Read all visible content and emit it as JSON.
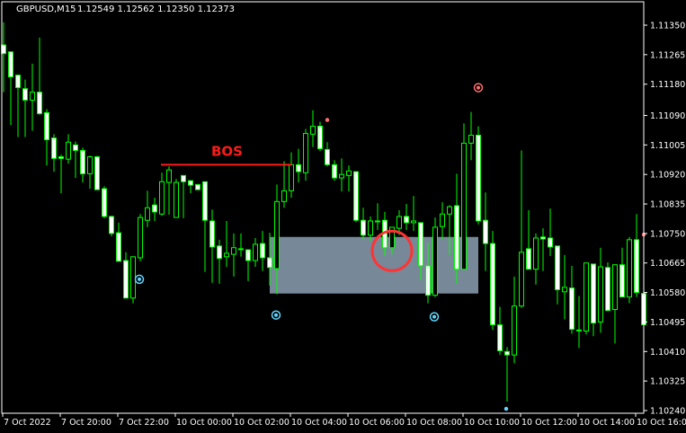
{
  "header": {
    "symbol": "GBPUSD,M15",
    "quote": "1.12549 1.12562 1.12350 1.12373"
  },
  "colors": {
    "background": "#000000",
    "candle_outline": "#00ff00",
    "bull_fill": "#000000",
    "bear_fill": "#ffffff",
    "bos": "#ff1a1a",
    "zone": "#778899",
    "marker_low": "#5fd7ff",
    "marker_high": "#ff7070",
    "highlight_circle": "#ff3333"
  },
  "price_axis": {
    "labels": [
      "1.11350",
      "1.11265",
      "1.11180",
      "1.11090",
      "1.11005",
      "1.10920",
      "1.10835",
      "1.10750",
      "1.10665",
      "1.10580",
      "1.10495",
      "1.10410",
      "1.10325",
      "1.10240"
    ]
  },
  "time_axis": {
    "labels": [
      "7 Oct 2022",
      "7 Oct 20:00",
      "7 Oct 22:00",
      "10 Oct 00:00",
      "10 Oct 02:00",
      "10 Oct 04:00",
      "10 Oct 06:00",
      "10 Oct 08:00",
      "10 Oct 10:00",
      "10 Oct 12:00",
      "10 Oct 14:00",
      "10 Oct 16:00"
    ]
  },
  "chart_data": {
    "type": "candlestick",
    "ohlc_order": [
      "open",
      "high",
      "low",
      "close"
    ],
    "candles": [
      [
        1.11293,
        1.11358,
        1.11157,
        1.11268
      ],
      [
        1.11273,
        1.11275,
        1.11062,
        1.11201
      ],
      [
        1.11206,
        1.11208,
        1.11028,
        1.1117
      ],
      [
        1.11167,
        1.11193,
        1.11028,
        1.11134
      ],
      [
        1.11134,
        1.11239,
        1.11046,
        1.11157
      ],
      [
        1.11157,
        1.11314,
        1.11092,
        1.11095
      ],
      [
        1.11098,
        1.11108,
        1.10946,
        1.1102
      ],
      [
        1.11025,
        1.11036,
        1.10928,
        1.10966
      ],
      [
        1.10971,
        1.10977,
        1.10866,
        1.10966
      ],
      [
        1.10964,
        1.11036,
        1.10951,
        1.11013
      ],
      [
        1.11005,
        1.11015,
        1.1091,
        1.10989
      ],
      [
        1.10989,
        1.10997,
        1.10897,
        1.10922
      ],
      [
        1.10922,
        1.10974,
        1.10879,
        1.10971
      ],
      [
        1.10971,
        1.10974,
        1.10876,
        1.10876
      ],
      [
        1.10879,
        1.10886,
        1.10794,
        1.10799
      ],
      [
        1.10799,
        1.10801,
        1.10742,
        1.1075
      ],
      [
        1.10752,
        1.10781,
        1.1067,
        1.1067
      ],
      [
        1.10672,
        1.10696,
        1.10564,
        1.10564
      ],
      [
        1.10564,
        1.10683,
        1.10549,
        1.10683
      ],
      [
        1.1068,
        1.10806,
        1.1067,
        1.10796
      ],
      [
        1.10788,
        1.10873,
        1.10768,
        1.10824
      ],
      [
        1.10832,
        1.10853,
        1.10786,
        1.10812
      ],
      [
        1.10806,
        1.10925,
        1.10801,
        1.10899
      ],
      [
        1.10897,
        1.10943,
        1.10804,
        1.10933
      ],
      [
        1.10796,
        1.10907,
        1.10796,
        1.10897
      ],
      [
        1.10917,
        1.10917,
        1.10794,
        1.10899
      ],
      [
        1.10902,
        1.10902,
        1.10866,
        1.10889
      ],
      [
        1.10891,
        1.10891,
        1.10876,
        1.10876
      ],
      [
        1.10899,
        1.10899,
        1.10639,
        1.10788
      ],
      [
        1.10786,
        1.10819,
        1.10608,
        1.10711
      ],
      [
        1.10714,
        1.10732,
        1.10605,
        1.10678
      ],
      [
        1.10683,
        1.10786,
        1.10654,
        1.10693
      ],
      [
        1.1069,
        1.1075,
        1.10626,
        1.10709
      ],
      [
        1.10706,
        1.1075,
        1.10683,
        1.10706
      ],
      [
        1.10703,
        1.10703,
        1.10613,
        1.10672
      ],
      [
        1.10672,
        1.10737,
        1.10654,
        1.10719
      ],
      [
        1.10721,
        1.10757,
        1.10642,
        1.1068
      ],
      [
        1.1068,
        1.10752,
        1.106,
        1.10652
      ],
      [
        1.10649,
        1.10891,
        1.10575,
        1.10842
      ],
      [
        1.10842,
        1.10958,
        1.10824,
        1.10873
      ],
      [
        1.10873,
        1.10984,
        1.10853,
        1.10948
      ],
      [
        1.10948,
        1.10994,
        1.10897,
        1.10928
      ],
      [
        1.10925,
        1.11051,
        1.10902,
        1.11038
      ],
      [
        1.11036,
        1.11105,
        1.10999,
        1.11059
      ],
      [
        1.11059,
        1.11072,
        1.10987,
        1.10994
      ],
      [
        1.10992,
        1.11013,
        1.10943,
        1.10948
      ],
      [
        1.10948,
        1.10961,
        1.10902,
        1.1091
      ],
      [
        1.1091,
        1.10966,
        1.10871,
        1.1092
      ],
      [
        1.10917,
        1.10946,
        1.10871,
        1.1093
      ],
      [
        1.10928,
        1.10928,
        1.10783,
        1.10788
      ],
      [
        1.10788,
        1.10824,
        1.10732,
        1.10745
      ],
      [
        1.10745,
        1.10799,
        1.10729,
        1.10786
      ],
      [
        1.10786,
        1.10837,
        1.1076,
        1.10786
      ],
      [
        1.10788,
        1.10812,
        1.10685,
        1.10709
      ],
      [
        1.10709,
        1.10768,
        1.1069,
        1.10768
      ],
      [
        1.10765,
        1.10817,
        1.10745,
        1.10799
      ],
      [
        1.10799,
        1.10835,
        1.1076,
        1.10781
      ],
      [
        1.10781,
        1.10858,
        1.10757,
        1.10786
      ],
      [
        1.10781,
        1.10781,
        1.10616,
        1.10657
      ],
      [
        1.10657,
        1.10724,
        1.10549,
        1.10572
      ],
      [
        1.10572,
        1.10796,
        1.10567,
        1.10768
      ],
      [
        1.1077,
        1.1084,
        1.10734,
        1.10806
      ],
      [
        1.10806,
        1.10832,
        1.10688,
        1.10827
      ],
      [
        1.1083,
        1.10922,
        1.10605,
        1.10647
      ],
      [
        1.10647,
        1.11067,
        1.10647,
        1.1101
      ],
      [
        1.1101,
        1.111,
        1.10961,
        1.11033
      ],
      [
        1.11033,
        1.11059,
        1.10776,
        1.10786
      ],
      [
        1.10788,
        1.10868,
        1.10642,
        1.10721
      ],
      [
        1.10721,
        1.10757,
        1.10472,
        1.10487
      ],
      [
        1.10487,
        1.10539,
        1.104,
        1.10412
      ],
      [
        1.1041,
        1.10423,
        1.10266,
        1.104
      ],
      [
        1.104,
        1.10626,
        1.10376,
        1.10541
      ],
      [
        1.10541,
        1.10989,
        1.10536,
        1.10696
      ],
      [
        1.10706,
        1.10817,
        1.10647,
        1.10647
      ],
      [
        1.10647,
        1.1075,
        1.10603,
        1.10737
      ],
      [
        1.1074,
        1.10765,
        1.10642,
        1.10734
      ],
      [
        1.10737,
        1.10822,
        1.10685,
        1.10711
      ],
      [
        1.10714,
        1.10714,
        1.10546,
        1.10588
      ],
      [
        1.10582,
        1.10688,
        1.10503,
        1.10595
      ],
      [
        1.10593,
        1.10657,
        1.10461,
        1.10474
      ],
      [
        1.10472,
        1.1057,
        1.1042,
        1.10472
      ],
      [
        1.10469,
        1.10665,
        1.10459,
        1.10665
      ],
      [
        1.10662,
        1.10662,
        1.10454,
        1.10492
      ],
      [
        1.10495,
        1.10709,
        1.10464,
        1.10654
      ],
      [
        1.10652,
        1.10667,
        1.10528,
        1.10528
      ],
      [
        1.10531,
        1.1066,
        1.10433,
        1.1066
      ],
      [
        1.1066,
        1.10709,
        1.10567,
        1.10567
      ],
      [
        1.10567,
        1.1074,
        1.10549,
        1.10732
      ],
      [
        1.10732,
        1.10806,
        1.10567,
        1.1058
      ],
      [
        1.10577,
        1.10647,
        1.10469,
        1.10487
      ]
    ],
    "annotations": {
      "bos": {
        "label": "BOS",
        "price": 1.10948,
        "from_candle": 22,
        "to_candle": 40
      },
      "zone": {
        "top": 1.1074,
        "bottom": 1.10577,
        "from_candle": 37,
        "to_candle": 66
      },
      "highlight_circle": {
        "candle": 54,
        "price": 1.107
      },
      "swing_low_markers": [
        {
          "candle": 19,
          "price": 1.10618
        },
        {
          "candle": 38,
          "price": 1.10515
        },
        {
          "candle": 60,
          "price": 1.1051
        }
      ],
      "swing_high_markers": [
        {
          "candle": 66,
          "price": 1.1117
        }
      ],
      "dots_high": [
        {
          "candle": 45,
          "price": 1.11077
        },
        {
          "candle": 89,
          "price": 1.10747
        }
      ],
      "dots_low": [
        {
          "candle": 70,
          "price": 1.10245
        }
      ]
    },
    "ylim": [
      1.1024,
      1.1135
    ]
  }
}
